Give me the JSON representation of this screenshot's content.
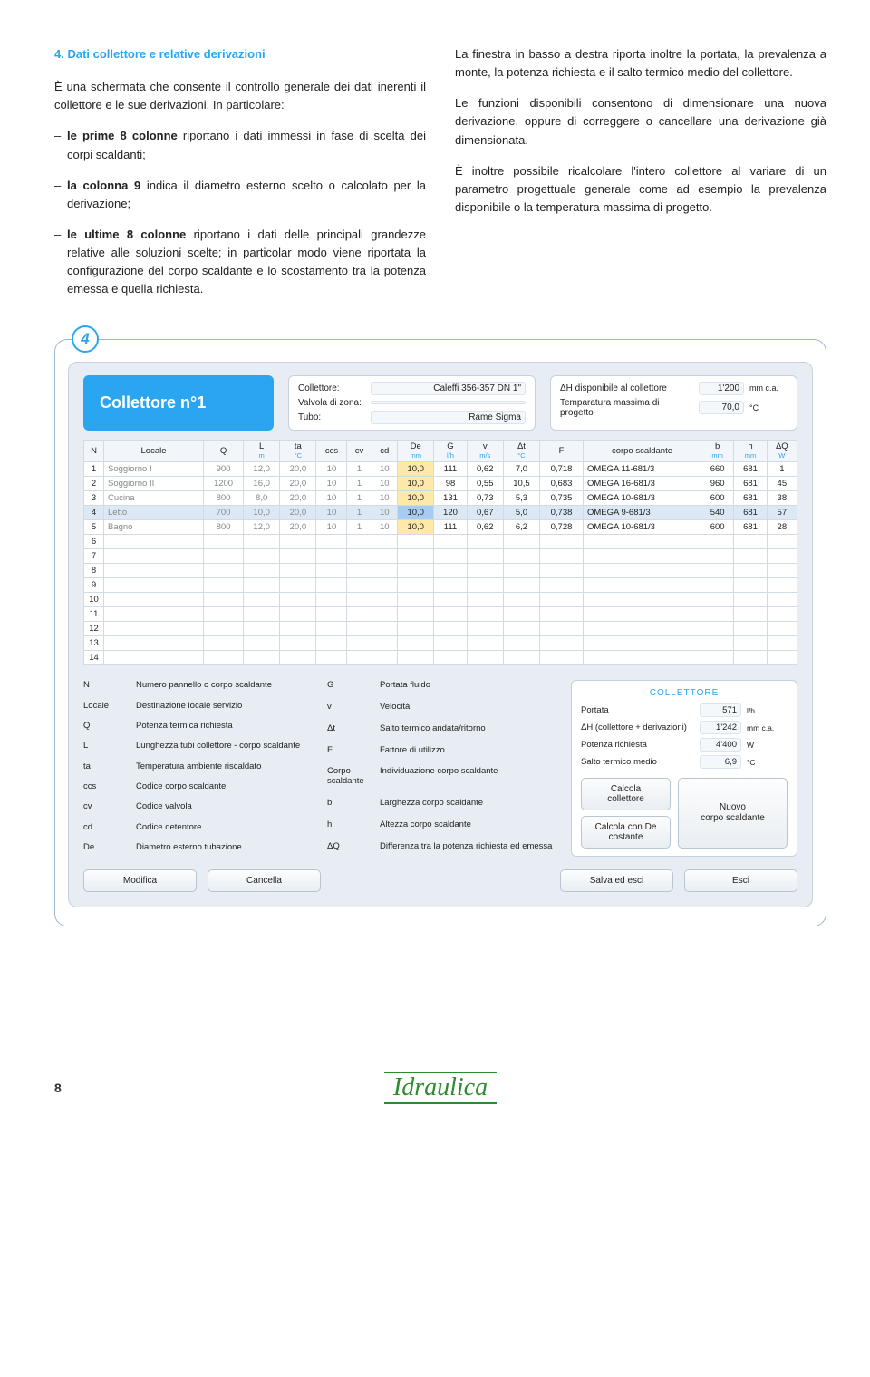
{
  "text": {
    "section_title": "4. Dati collettore e relative derivazioni",
    "left_p1": "È una schermata che consente il controllo generale dei dati inerenti il collettore e le sue derivazioni. In particolare:",
    "left_li1a": "le prime 8 colonne",
    "left_li1b": " riportano i dati immessi in fase di scelta dei corpi scaldanti;",
    "left_li2a": "la colonna 9",
    "left_li2b": " indica il diametro esterno scelto o calcolato per la derivazione;",
    "left_li3a": "le ultime 8 colonne",
    "left_li3b": " riportano i dati delle principali grandezze relative alle soluzioni scelte; in particolar modo viene riportata la configurazione del corpo scaldante e lo scostamento tra la potenza emessa e quella richiesta.",
    "right_p1": "La finestra in basso a destra riporta inoltre la portata, la prevalenza a monte, la potenza richiesta e il salto termico medio del collettore.",
    "right_p2": "Le funzioni disponibili consentono di dimensionare una nuova derivazione, oppure di correggere o cancellare una derivazione già dimensionata.",
    "right_p3": "È inoltre possibile ricalcolare l'intero collettore al variare di un parametro progettuale generale come ad esempio la prevalenza disponibile o la temperatura massima di progetto."
  },
  "panel": {
    "circle_num": "4",
    "title": "Collettore n°1",
    "meta1": {
      "l1": "Collettore:",
      "v1": "Caleffi 356-357 DN 1\"",
      "l2": "Valvola di zona:",
      "v2": "",
      "l3": "Tubo:",
      "v3": "Rame Sigma"
    },
    "meta2": {
      "l1": "ΔH disponibile al collettore",
      "v1": "1'200",
      "u1": "mm c.a.",
      "l2": "Temparatura massima di progetto",
      "v2": "70,0",
      "u2": "°C"
    },
    "columns": [
      {
        "h": "N",
        "u": ""
      },
      {
        "h": "Locale",
        "u": ""
      },
      {
        "h": "Q",
        "u": ""
      },
      {
        "h": "L",
        "u": "m"
      },
      {
        "h": "ta",
        "u": "°C"
      },
      {
        "h": "ccs",
        "u": ""
      },
      {
        "h": "cv",
        "u": ""
      },
      {
        "h": "cd",
        "u": ""
      },
      {
        "h": "De",
        "u": "mm"
      },
      {
        "h": "G",
        "u": "l/h"
      },
      {
        "h": "v",
        "u": "m/s"
      },
      {
        "h": "Δt",
        "u": "°C"
      },
      {
        "h": "F",
        "u": ""
      },
      {
        "h": "corpo scaldante",
        "u": ""
      },
      {
        "h": "b",
        "u": "mm"
      },
      {
        "h": "h",
        "u": "mm"
      },
      {
        "h": "ΔQ",
        "u": "W"
      }
    ],
    "rows": [
      {
        "n": "1",
        "locale": "Soggiorno I",
        "q": "900",
        "l": "12,0",
        "ta": "20,0",
        "ccs": "10",
        "cv": "1",
        "cd": "10",
        "de": "10,0",
        "g": "111",
        "v": "0,62",
        "dt": "7,0",
        "f": "0,718",
        "cs": "OMEGA 11-681/3",
        "b": "660",
        "h": "681",
        "dq": "1",
        "sel": false
      },
      {
        "n": "2",
        "locale": "Soggiorno II",
        "q": "1200",
        "l": "16,0",
        "ta": "20,0",
        "ccs": "10",
        "cv": "1",
        "cd": "10",
        "de": "10,0",
        "g": "98",
        "v": "0,55",
        "dt": "10,5",
        "f": "0,683",
        "cs": "OMEGA 16-681/3",
        "b": "960",
        "h": "681",
        "dq": "45",
        "sel": false
      },
      {
        "n": "3",
        "locale": "Cucina",
        "q": "800",
        "l": "8,0",
        "ta": "20,0",
        "ccs": "10",
        "cv": "1",
        "cd": "10",
        "de": "10,0",
        "g": "131",
        "v": "0,73",
        "dt": "5,3",
        "f": "0,735",
        "cs": "OMEGA 10-681/3",
        "b": "600",
        "h": "681",
        "dq": "38",
        "sel": false
      },
      {
        "n": "4",
        "locale": "Letto",
        "q": "700",
        "l": "10,0",
        "ta": "20,0",
        "ccs": "10",
        "cv": "1",
        "cd": "10",
        "de": "10,0",
        "g": "120",
        "v": "0,67",
        "dt": "5,0",
        "f": "0,738",
        "cs": "OMEGA 9-681/3",
        "b": "540",
        "h": "681",
        "dq": "57",
        "sel": true
      },
      {
        "n": "5",
        "locale": "Bagno",
        "q": "800",
        "l": "12,0",
        "ta": "20,0",
        "ccs": "10",
        "cv": "1",
        "cd": "10",
        "de": "10,0",
        "g": "111",
        "v": "0,62",
        "dt": "6,2",
        "f": "0,728",
        "cs": "OMEGA 10-681/3",
        "b": "600",
        "h": "681",
        "dq": "28",
        "sel": false
      }
    ],
    "empty_rows": [
      "6",
      "7",
      "8",
      "9",
      "10",
      "11",
      "12",
      "13",
      "14"
    ],
    "legend_left": [
      [
        "N",
        "Numero pannello o corpo scaldante"
      ],
      [
        "Locale",
        "Destinazione locale servizio"
      ],
      [
        "Q",
        "Potenza termica richiesta"
      ],
      [
        "L",
        "Lunghezza tubi collettore - corpo scaldante"
      ],
      [
        "ta",
        "Temperatura ambiente riscaldato"
      ],
      [
        "ccs",
        "Codice corpo scaldante"
      ],
      [
        "cv",
        "Codice valvola"
      ],
      [
        "cd",
        "Codice detentore"
      ],
      [
        "De",
        "Diametro esterno tubazione"
      ]
    ],
    "legend_right": [
      [
        "G",
        "Portata fluido"
      ],
      [
        "v",
        "Velocità"
      ],
      [
        "Δt",
        "Salto termico andata/ritorno"
      ],
      [
        "F",
        "Fattore di utilizzo"
      ],
      [
        "Corpo scaldante",
        "Individuazione corpo scaldante"
      ],
      [
        "b",
        "Larghezza corpo scaldante"
      ],
      [
        "h",
        "Altezza corpo scaldante"
      ],
      [
        "ΔQ",
        "Differenza tra la potenza richiesta ed emessa"
      ]
    ],
    "summary": {
      "title": "COLLETTORE",
      "rows": [
        {
          "l": "Portata",
          "v": "571",
          "u": "l/h"
        },
        {
          "l": "ΔH (collettore + derivazioni)",
          "v": "1'242",
          "u": "mm c.a."
        },
        {
          "l": "Potenza richiesta",
          "v": "4'400",
          "u": "W"
        },
        {
          "l": "Salto termico medio",
          "v": "6,9",
          "u": "°C"
        }
      ],
      "btn1": "Calcola collettore",
      "btn2": "Calcola con De costante",
      "btn3": "Nuovo\ncorpo scaldante"
    },
    "bottom_btns": {
      "modifica": "Modifica",
      "cancella": "Cancella",
      "salva": "Salva ed esci",
      "esci": "Esci"
    }
  },
  "footer": {
    "page_num": "8",
    "logo": "Idraulica"
  },
  "colors": {
    "accent": "#2aa6f0",
    "panel_bg": "#e7edf2",
    "de_highlight": "#ffe9a8",
    "sel_row": "#dce9f5"
  }
}
